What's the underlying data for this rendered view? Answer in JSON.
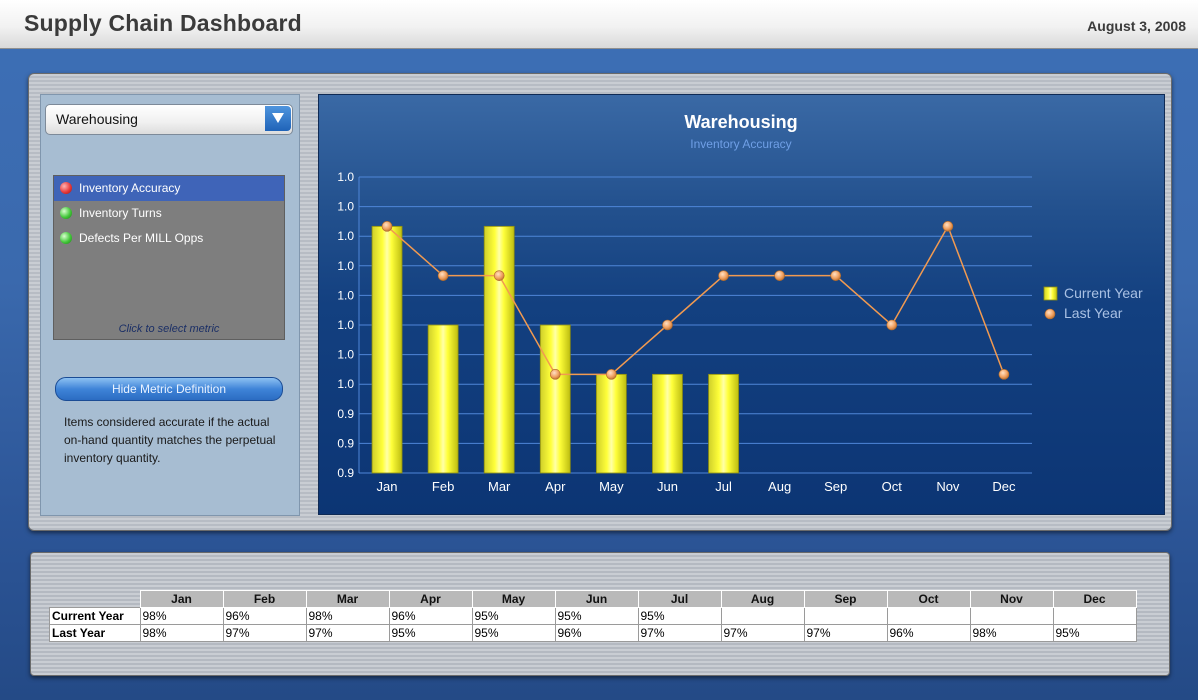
{
  "header": {
    "title": "Supply Chain Dashboard",
    "date": "August 3, 2008"
  },
  "sidebar": {
    "dropdown": {
      "value": "Warehousing",
      "icon": "chevron-down-icon"
    },
    "metrics": [
      {
        "label": "Inventory Accuracy",
        "status": "red",
        "selected": true
      },
      {
        "label": "Inventory Turns",
        "status": "green",
        "selected": false
      },
      {
        "label": "Defects Per MILL Opps",
        "status": "green",
        "selected": false
      }
    ],
    "click_hint": "Click to select metric",
    "hide_button": "Hide Metric Definition",
    "definition": "Items considered accurate if the actual on-hand quantity matches the perpetual inventory quantity."
  },
  "chart_data": {
    "type": "bar",
    "title": "Warehousing",
    "subtitle": "Inventory Accuracy",
    "categories": [
      "Jan",
      "Feb",
      "Mar",
      "Apr",
      "May",
      "Jun",
      "Jul",
      "Aug",
      "Sep",
      "Oct",
      "Nov",
      "Dec"
    ],
    "series": [
      {
        "name": "Current Year",
        "kind": "bar",
        "color": "#f2f21c",
        "values": [
          0.98,
          0.96,
          0.98,
          0.96,
          0.95,
          0.95,
          0.95,
          null,
          null,
          null,
          null,
          null
        ]
      },
      {
        "name": "Last Year",
        "kind": "line",
        "color": "#f29a50",
        "values": [
          0.98,
          0.97,
          0.97,
          0.95,
          0.95,
          0.96,
          0.97,
          0.97,
          0.97,
          0.96,
          0.98,
          0.95
        ]
      }
    ],
    "y_tick_labels": [
      "1.0",
      "1.0",
      "1.0",
      "1.0",
      "1.0",
      "1.0",
      "1.0",
      "1.0",
      "0.9",
      "0.9",
      "0.9"
    ],
    "ylim": [
      0.93,
      0.99
    ],
    "grid": true,
    "legend_position": "right"
  },
  "table": {
    "months": [
      "Jan",
      "Feb",
      "Mar",
      "Apr",
      "May",
      "Jun",
      "Jul",
      "Aug",
      "Sep",
      "Oct",
      "Nov",
      "Dec"
    ],
    "rows": [
      {
        "label": "Current Year",
        "values": [
          "98%",
          "96%",
          "98%",
          "96%",
          "95%",
          "95%",
          "95%",
          "",
          "",
          "",
          "",
          ""
        ]
      },
      {
        "label": "Last Year",
        "values": [
          "98%",
          "97%",
          "97%",
          "95%",
          "95%",
          "96%",
          "97%",
          "97%",
          "97%",
          "96%",
          "98%",
          "95%"
        ]
      }
    ]
  }
}
